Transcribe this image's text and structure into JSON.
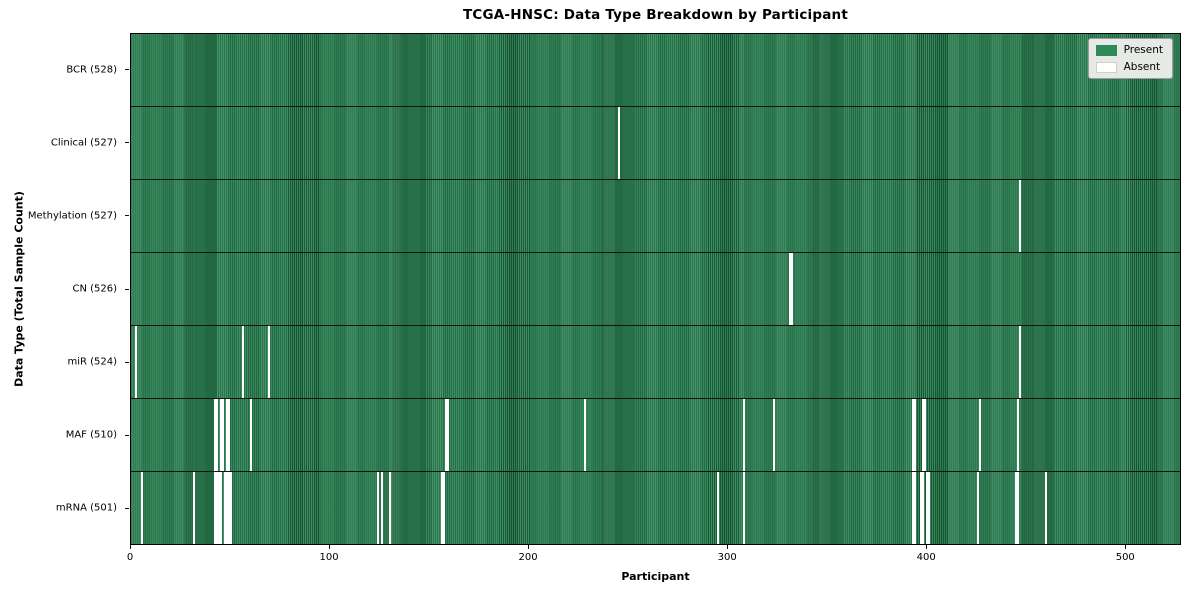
{
  "page": {
    "title": "TCGA-HNSC: Data Type Breakdown by Participant"
  },
  "chart_data": {
    "type": "heatmap",
    "title": "TCGA-HNSC: Data Type Breakdown by Participant",
    "xlabel": "Participant",
    "ylabel": "Data Type (Total Sample Count)",
    "x_ticks": [
      0,
      100,
      200,
      300,
      400,
      500
    ],
    "x_range": [
      0,
      528
    ],
    "total_participants": 528,
    "grid": false,
    "legend_position": "upper right",
    "legend": [
      {
        "label": "Present",
        "color": "#2e8b57"
      },
      {
        "label": "Absent",
        "color": "#ffffff"
      }
    ],
    "rows": [
      {
        "label": "BCR (528)",
        "data_type": "BCR",
        "count": 528,
        "absent_participants": []
      },
      {
        "label": "Clinical (527)",
        "data_type": "Clinical",
        "count": 527,
        "absent_participants": [
          245
        ]
      },
      {
        "label": "Methylation (527)",
        "data_type": "Methylation",
        "count": 527,
        "absent_participants": [
          447
        ]
      },
      {
        "label": "CN (526)",
        "data_type": "CN",
        "count": 526,
        "absent_participants": [
          331,
          332
        ]
      },
      {
        "label": "miR (524)",
        "data_type": "miR",
        "count": 524,
        "absent_participants": [
          2,
          56,
          69,
          447
        ]
      },
      {
        "label": "MAF (510)",
        "data_type": "MAF",
        "count": 510,
        "absent_participants": [
          42,
          43,
          45,
          46,
          48,
          49,
          60,
          158,
          159,
          228,
          308,
          323,
          393,
          394,
          398,
          399,
          427,
          446
        ]
      },
      {
        "label": "mRNA (501)",
        "data_type": "mRNA",
        "count": 501,
        "absent_participants": [
          5,
          31,
          42,
          43,
          44,
          45,
          47,
          48,
          49,
          50,
          124,
          126,
          130,
          156,
          157,
          295,
          308,
          393,
          394,
          397,
          398,
          400,
          401,
          426,
          445,
          446,
          460
        ]
      }
    ],
    "colors": {
      "present": "#2e8b57",
      "absent": "#ffffff",
      "row_separator": "#131313",
      "plot_border": "#000000",
      "legend_background": "#e6e9e6",
      "legend_border": "#9c9c9c"
    }
  }
}
